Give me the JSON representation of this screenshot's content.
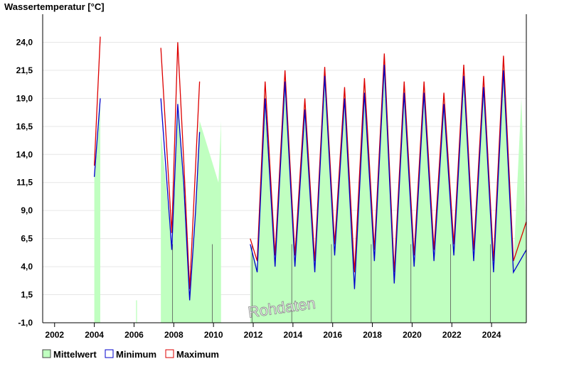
{
  "chart_data": {
    "type": "area",
    "ylabel": "Wassertemperatur [°C]",
    "watermark": "Rohdaten",
    "ylim": [
      -1.0,
      26.5
    ],
    "xlim": [
      2001.4,
      2025.75
    ],
    "y_ticks": [
      "-1,0",
      "1,5",
      "4,0",
      "6,5",
      "9,0",
      "11,5",
      "14,0",
      "16,5",
      "19,0",
      "21,5",
      "24,0"
    ],
    "y_tick_values": [
      -1.0,
      1.5,
      4.0,
      6.5,
      9.0,
      11.5,
      14.0,
      16.5,
      19.0,
      21.5,
      24.0
    ],
    "x_ticks": [
      "2002",
      "2004",
      "2006",
      "2008",
      "2010",
      "2012",
      "2014",
      "2016",
      "2018",
      "2020",
      "2022",
      "2024"
    ],
    "x_tick_values": [
      2002,
      2004,
      2006,
      2008,
      2010,
      2012,
      2014,
      2016,
      2018,
      2020,
      2022,
      2024
    ],
    "colors": {
      "mean": "#c0ffc0",
      "min": "#0000cc",
      "max": "#dd0000",
      "grid": "#e6e6e6",
      "vline": "#555555"
    },
    "legend": [
      {
        "name": "Mittelwert",
        "color": "#c0ffc0"
      },
      {
        "name": "Minimum",
        "color": "#0000cc"
      },
      {
        "name": "Maximum",
        "color": "#dd0000"
      }
    ],
    "legend_position": "bottom-left",
    "series": [
      {
        "name": "Mittelwert",
        "x": [
          2001.4,
          2004.0,
          2004.3,
          2006.1,
          2006.15,
          2007.35,
          2007.9,
          2008.2,
          2008.5,
          2008.8,
          2009.1,
          2009.3,
          2010.25,
          2010.38,
          2011.85,
          2012.2,
          2012.6,
          2013.1,
          2013.6,
          2014.1,
          2014.6,
          2015.1,
          2015.6,
          2016.1,
          2016.6,
          2017.1,
          2017.6,
          2018.1,
          2018.6,
          2019.1,
          2019.6,
          2020.1,
          2020.6,
          2021.1,
          2021.6,
          2022.1,
          2022.6,
          2023.1,
          2023.6,
          2024.1,
          2024.6,
          2025.1,
          2025.5,
          2025.75
        ],
        "values": [
          null,
          12.0,
          19.5,
          1.0,
          1.0,
          16.0,
          6.0,
          19.0,
          12.0,
          1.5,
          10.0,
          17.0,
          11.5,
          17.0,
          6.0,
          4.0,
          19.5,
          4.5,
          21.0,
          4.5,
          18.5,
          4.0,
          21.5,
          5.5,
          19.5,
          3.0,
          20.0,
          5.0,
          22.5,
          3.0,
          20.0,
          4.5,
          20.0,
          5.0,
          19.0,
          5.5,
          21.5,
          5.0,
          20.5,
          4.0,
          22.0,
          4.0,
          19.0,
          6.0
        ]
      },
      {
        "name": "Minimum",
        "x": [
          2004.0,
          2004.3,
          2007.35,
          2007.9,
          2008.2,
          2008.5,
          2008.8,
          2009.1,
          2009.3,
          2011.85,
          2012.2,
          2012.6,
          2013.1,
          2013.6,
          2014.1,
          2014.6,
          2015.1,
          2015.6,
          2016.1,
          2016.6,
          2017.1,
          2017.6,
          2018.1,
          2018.6,
          2019.1,
          2019.6,
          2020.1,
          2020.6,
          2021.1,
          2021.6,
          2022.1,
          2022.6,
          2023.1,
          2023.6,
          2024.1,
          2024.6,
          2025.1,
          2025.75
        ],
        "values": [
          12.0,
          19.0,
          19.0,
          5.5,
          18.5,
          11.5,
          1.0,
          9.0,
          16.0,
          6.0,
          3.5,
          19.0,
          4.0,
          20.5,
          4.0,
          18.0,
          3.5,
          21.0,
          5.0,
          19.0,
          2.0,
          19.5,
          4.5,
          22.0,
          2.5,
          19.5,
          4.0,
          19.5,
          4.5,
          18.5,
          5.0,
          21.0,
          4.5,
          20.0,
          3.5,
          21.5,
          3.5,
          5.5
        ]
      },
      {
        "name": "Maximum",
        "x": [
          2004.0,
          2004.3,
          2007.35,
          2007.9,
          2008.2,
          2008.5,
          2008.8,
          2009.1,
          2009.3,
          2011.85,
          2012.2,
          2012.6,
          2013.1,
          2013.6,
          2014.1,
          2014.6,
          2015.1,
          2015.6,
          2016.1,
          2016.6,
          2017.1,
          2017.6,
          2018.1,
          2018.6,
          2019.1,
          2019.6,
          2020.1,
          2020.6,
          2021.1,
          2021.6,
          2022.1,
          2022.6,
          2023.1,
          2023.6,
          2024.1,
          2024.6,
          2025.1,
          2025.75
        ],
        "values": [
          13.0,
          24.5,
          23.5,
          7.0,
          24.0,
          13.5,
          2.0,
          13.0,
          20.5,
          6.5,
          4.5,
          20.5,
          5.0,
          21.5,
          5.0,
          19.0,
          4.5,
          21.8,
          6.0,
          20.0,
          3.5,
          20.8,
          5.5,
          23.0,
          3.5,
          20.5,
          5.0,
          20.5,
          5.5,
          19.5,
          6.0,
          22.0,
          5.5,
          21.0,
          4.5,
          22.8,
          4.5,
          8.0
        ]
      }
    ]
  }
}
